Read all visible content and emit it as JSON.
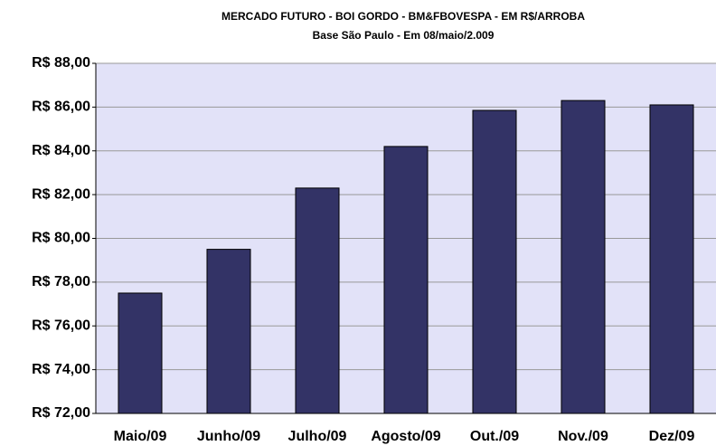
{
  "chart_data": {
    "type": "bar",
    "title": "MERCADO FUTURO - BOI GORDO - BM&FBOVESPA - EM R$/ARROBA",
    "subtitle": "Base São Paulo - Em 08/maio/2.009",
    "categories": [
      "Maio/09",
      "Junho/09",
      "Julho/09",
      "Agosto/09",
      "Out./09",
      "Nov./09",
      "Dez/09"
    ],
    "values": [
      77.5,
      79.5,
      82.3,
      84.2,
      85.85,
      86.3,
      86.1
    ],
    "color": "#333366",
    "ylim": [
      72,
      88
    ],
    "yticks": [
      {
        "value": 72,
        "label": "R$ 72,00"
      },
      {
        "value": 74,
        "label": "R$ 74,00"
      },
      {
        "value": 76,
        "label": "R$ 76,00"
      },
      {
        "value": 78,
        "label": "R$ 78,00"
      },
      {
        "value": 80,
        "label": "R$ 80,00"
      },
      {
        "value": 82,
        "label": "R$ 82,00"
      },
      {
        "value": 84,
        "label": "R$ 84,00"
      },
      {
        "value": 86,
        "label": "R$ 86,00"
      },
      {
        "value": 88,
        "label": "R$ 88,00"
      }
    ],
    "grid": true
  }
}
